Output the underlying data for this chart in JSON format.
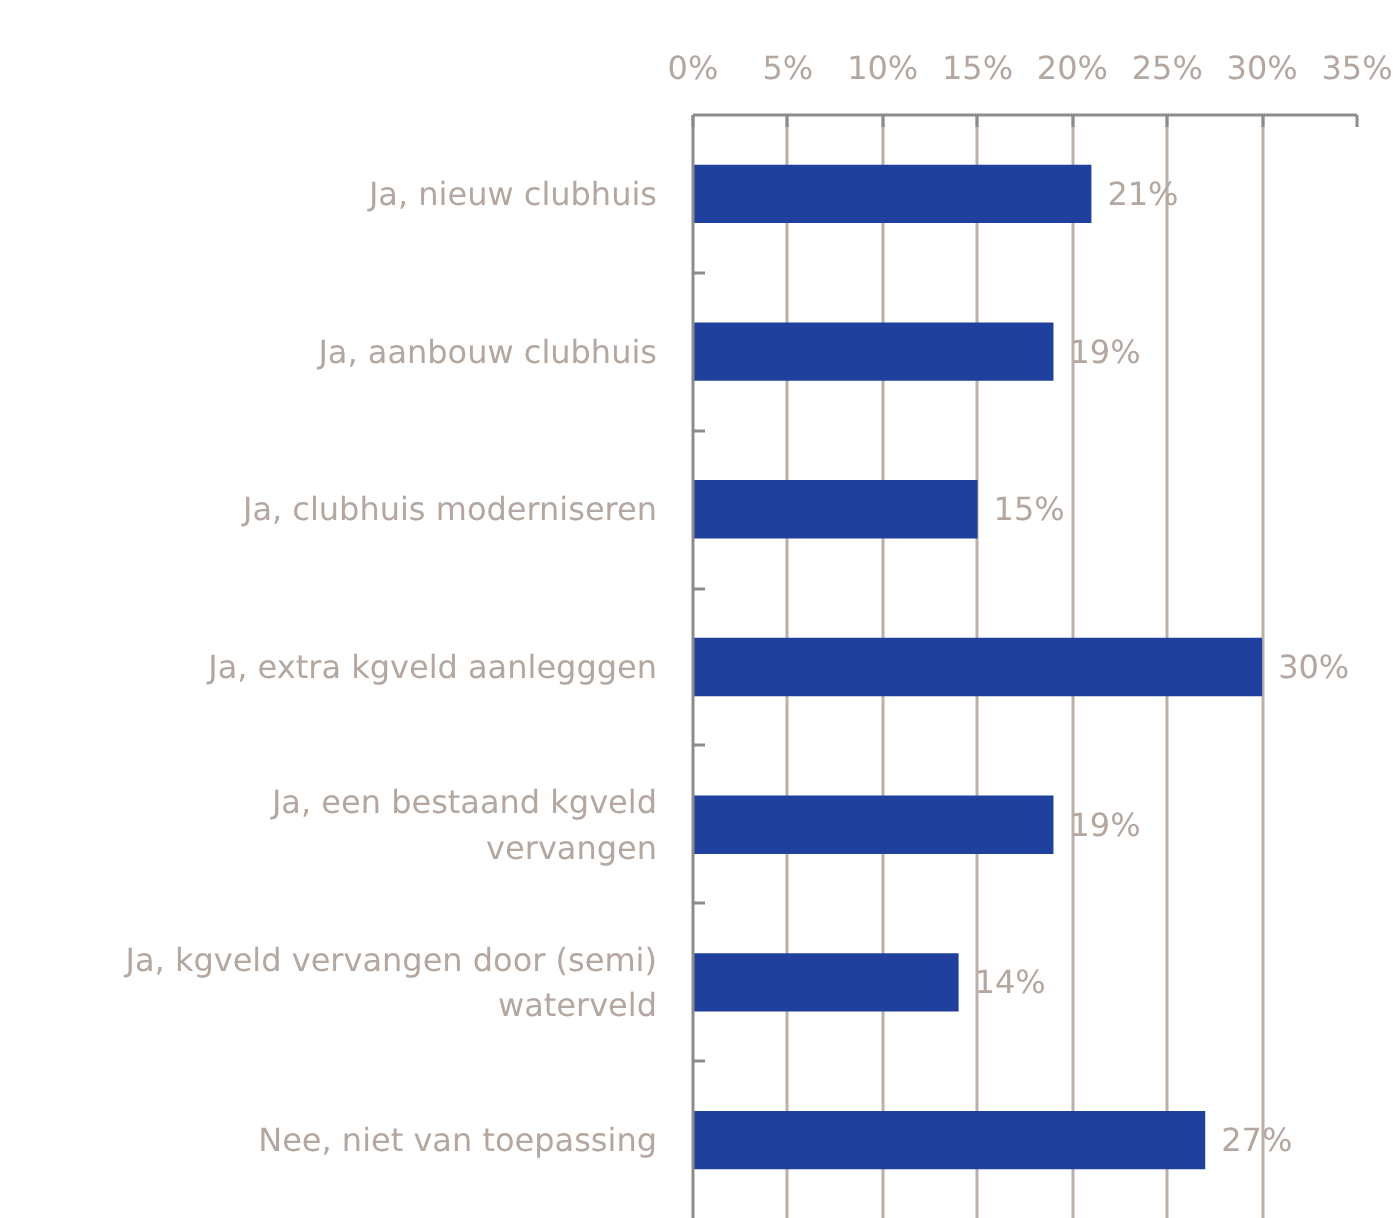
{
  "chart_data": {
    "type": "bar",
    "orientation": "horizontal",
    "categories": [
      "Ja, nieuw clubhuis",
      "Ja, aanbouw clubhuis",
      "Ja, clubhuis moderniseren",
      "Ja, extra kgveld aanlegggen",
      "Ja, een bestaand kgveld vervangen",
      "Ja, kgveld vervangen door (semi) waterveld",
      "Nee, niet van toepassing"
    ],
    "values": [
      21,
      19,
      15,
      30,
      19,
      14,
      27
    ],
    "color": "#1f409d",
    "value_labels": [
      "21%",
      "19%",
      "15%",
      "30%",
      "19%",
      "14%",
      "27%"
    ],
    "xlim": [
      0,
      35
    ],
    "xticks": [
      {
        "value": 0,
        "label": "0%"
      },
      {
        "value": 5,
        "label": "5%"
      },
      {
        "value": 10,
        "label": "10%"
      },
      {
        "value": 15,
        "label": "15%"
      },
      {
        "value": 20,
        "label": "20%"
      },
      {
        "value": 25,
        "label": "25%"
      },
      {
        "value": 30,
        "label": "30%"
      },
      {
        "value": 35,
        "label": "35%"
      }
    ],
    "grid": "x"
  }
}
